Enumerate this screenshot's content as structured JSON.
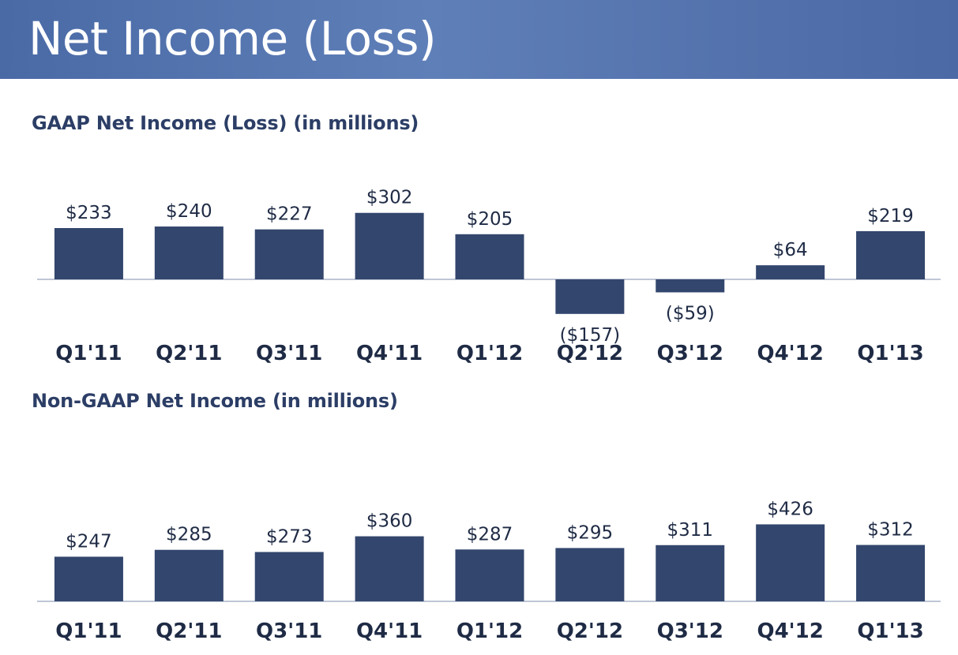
{
  "page_title": "Net Income (Loss)",
  "chart_data": [
    {
      "type": "bar",
      "title": "GAAP Net Income (Loss) (in millions)",
      "categories": [
        "Q1'11",
        "Q2'11",
        "Q3'11",
        "Q4'11",
        "Q1'12",
        "Q2'12",
        "Q3'12",
        "Q4'12",
        "Q1'13"
      ],
      "values": [
        233,
        240,
        227,
        302,
        205,
        -157,
        -59,
        64,
        219
      ],
      "value_labels": [
        "$233",
        "$240",
        "$227",
        "$302",
        "$205",
        "($157)",
        "($59)",
        "$64",
        "$219"
      ],
      "bar_color": "#33466d",
      "grid": false
    },
    {
      "type": "bar",
      "title": "Non-GAAP Net Income (in millions)",
      "categories": [
        "Q1'11",
        "Q2'11",
        "Q3'11",
        "Q4'11",
        "Q1'12",
        "Q2'12",
        "Q3'12",
        "Q4'12",
        "Q1'13"
      ],
      "values": [
        247,
        285,
        273,
        360,
        287,
        295,
        311,
        426,
        312
      ],
      "value_labels": [
        "$247",
        "$285",
        "$273",
        "$360",
        "$287",
        "$295",
        "$311",
        "$426",
        "$312"
      ],
      "bar_color": "#33466d",
      "grid": false
    }
  ]
}
